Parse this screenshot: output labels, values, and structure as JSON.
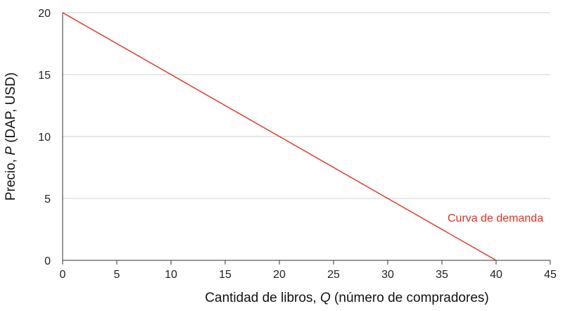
{
  "chart_data": {
    "type": "line",
    "title": "",
    "xlabel_prefix": "Cantidad de libros, ",
    "xlabel_var": "Q",
    "xlabel_suffix": " (número de compradores)",
    "ylabel_prefix": "Precio, ",
    "ylabel_var": "P",
    "ylabel_suffix": " (DAP, USD)",
    "xlim": [
      0,
      45
    ],
    "ylim": [
      0,
      20
    ],
    "xticks": [
      "0",
      "5",
      "10",
      "15",
      "20",
      "25",
      "30",
      "35",
      "40",
      "45"
    ],
    "yticks": [
      "0",
      "5",
      "10",
      "15",
      "20"
    ],
    "grid": "horizontal",
    "series": [
      {
        "name": "Curva de demanda",
        "color": "#e0301e",
        "points": [
          [
            0,
            20
          ],
          [
            40,
            0
          ]
        ]
      }
    ],
    "annotations": [
      {
        "text": "Curva de demanda",
        "color": "#e0301e"
      }
    ]
  },
  "colors": {
    "grid": "#d0d0d0",
    "axis": "#333333",
    "curve": "#e0301e"
  }
}
